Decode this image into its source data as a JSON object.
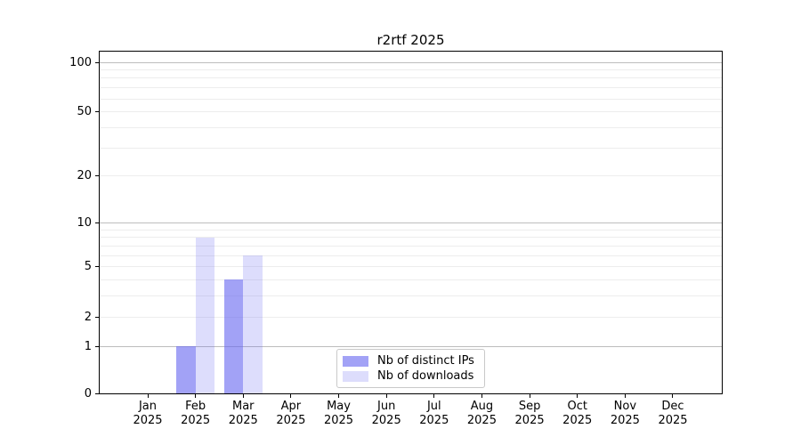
{
  "title": "r2rtf 2025",
  "chart_data": {
    "type": "bar",
    "title": "r2rtf 2025",
    "categories": [
      "Jan",
      "Feb",
      "Mar",
      "Apr",
      "May",
      "Jun",
      "Jul",
      "Aug",
      "Sep",
      "Oct",
      "Nov",
      "Dec"
    ],
    "category_year": "2025",
    "series": [
      {
        "name": "Nb of distinct IPs",
        "color": "rgba(100,100,240,0.6)",
        "color_hex": "#a7a7f0",
        "values": [
          0,
          1,
          4,
          0,
          0,
          0,
          0,
          0,
          0,
          0,
          0,
          0
        ]
      },
      {
        "name": "Nb of downloads",
        "color": "rgba(100,100,240,0.22)",
        "color_hex": "#dbdbf8",
        "values": [
          0,
          8,
          6,
          0,
          0,
          0,
          0,
          0,
          0,
          0,
          0,
          0
        ]
      }
    ],
    "xlabel": "",
    "ylabel": "",
    "yticks": [
      0,
      1,
      2,
      5,
      10,
      20,
      50,
      100
    ],
    "yscale": "log1p",
    "ylim": [
      0,
      117
    ],
    "grid": true,
    "grid_minor_values": [
      2,
      3,
      4,
      5,
      6,
      7,
      8,
      9,
      20,
      30,
      40,
      50,
      60,
      70,
      80,
      90
    ],
    "grid_major_values": [
      1,
      10,
      100
    ],
    "legend_position": "lower center"
  }
}
